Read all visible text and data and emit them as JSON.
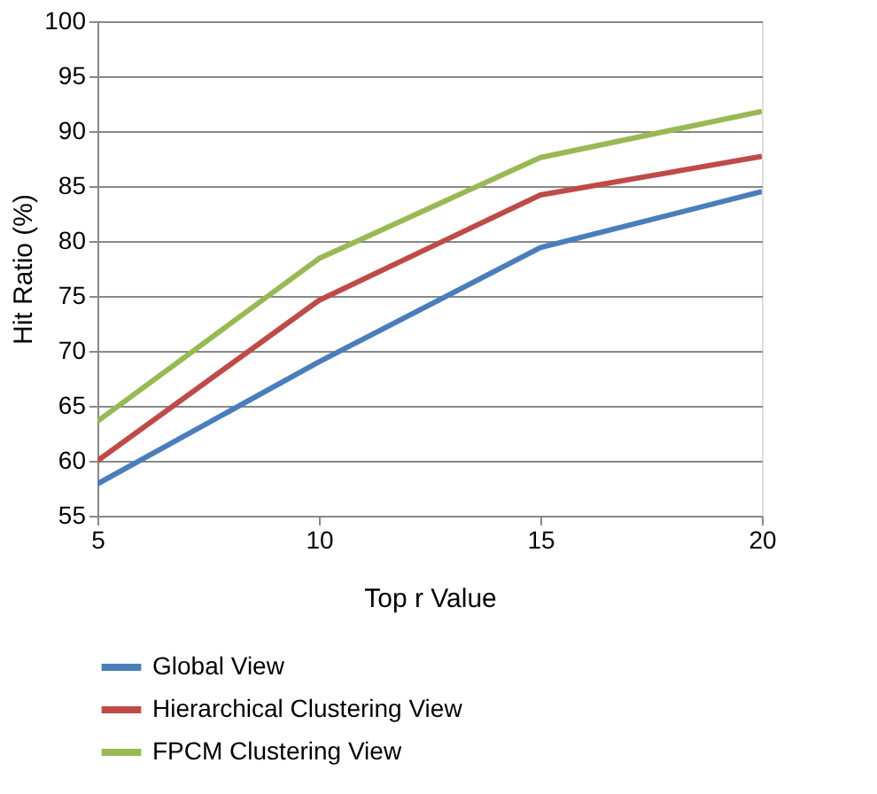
{
  "chart_data": {
    "type": "line",
    "xlabel": "Top r Value",
    "ylabel": "Hit Ratio (%)",
    "x": [
      5,
      10,
      15,
      20
    ],
    "series": [
      {
        "name": "Global View",
        "color": "#4a7ebb",
        "values": [
          57.9,
          69.0,
          79.4,
          84.5
        ]
      },
      {
        "name": "Hierarchical Clustering View",
        "color": "#be4b48",
        "values": [
          60.0,
          74.6,
          84.2,
          87.7
        ]
      },
      {
        "name": "FPCM Clustering View",
        "color": "#98b954",
        "values": [
          63.6,
          78.4,
          87.6,
          91.8
        ]
      }
    ],
    "xlim": [
      5,
      20
    ],
    "xticks": [
      5,
      10,
      15,
      20
    ],
    "ylim": [
      55,
      100
    ],
    "yticks": [
      55,
      60,
      65,
      70,
      75,
      80,
      85,
      90,
      95,
      100
    ],
    "grid": "y",
    "legend": "bottom",
    "marker": "none",
    "line_style": "solid"
  }
}
